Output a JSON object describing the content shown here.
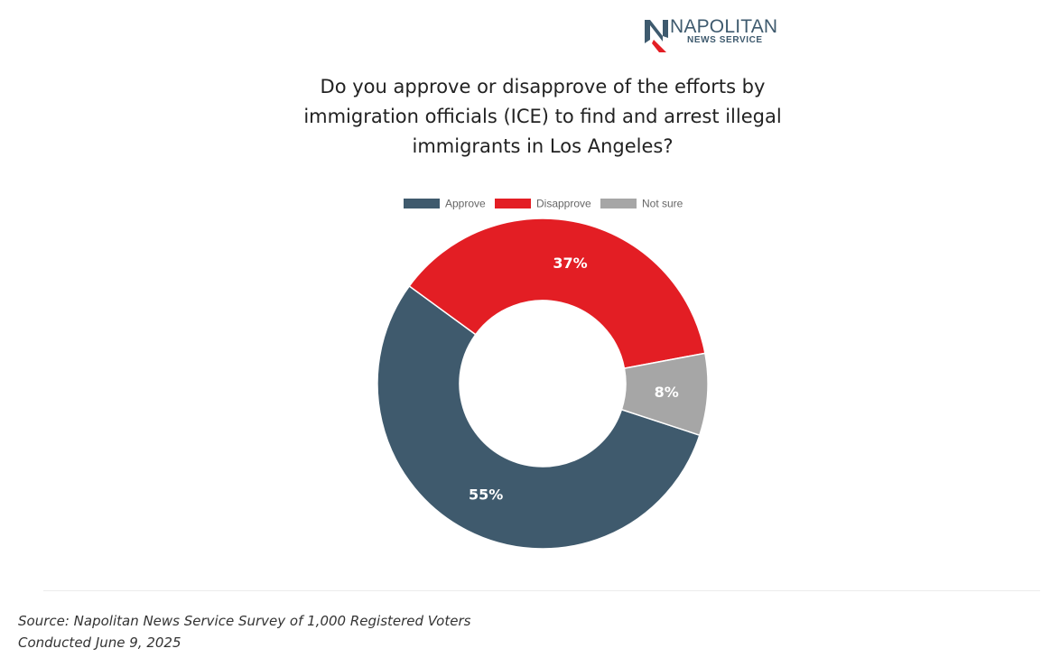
{
  "brand": {
    "name": "NAPOLITAN",
    "sub": "NEWS SERVICE",
    "logo_icon": "n-logo-icon"
  },
  "chart_data": {
    "type": "pie",
    "donut": true,
    "title": "Do you approve or disapprove of the efforts by immigration officials (ICE) to find and arrest illegal immigrants in Los Angeles?",
    "legend_placement": "top",
    "categories": [
      "Approve",
      "Disapprove",
      "Not sure"
    ],
    "values": [
      55,
      37,
      8
    ],
    "labels": [
      "55%",
      "37%",
      "8%"
    ],
    "colors": [
      "#3f5a6d",
      "#e31e24",
      "#a6a6a6"
    ]
  },
  "source": {
    "line1": "Source: Napolitan News Service Survey of 1,000 Registered Voters",
    "line2": "Conducted June 9, 2025"
  }
}
